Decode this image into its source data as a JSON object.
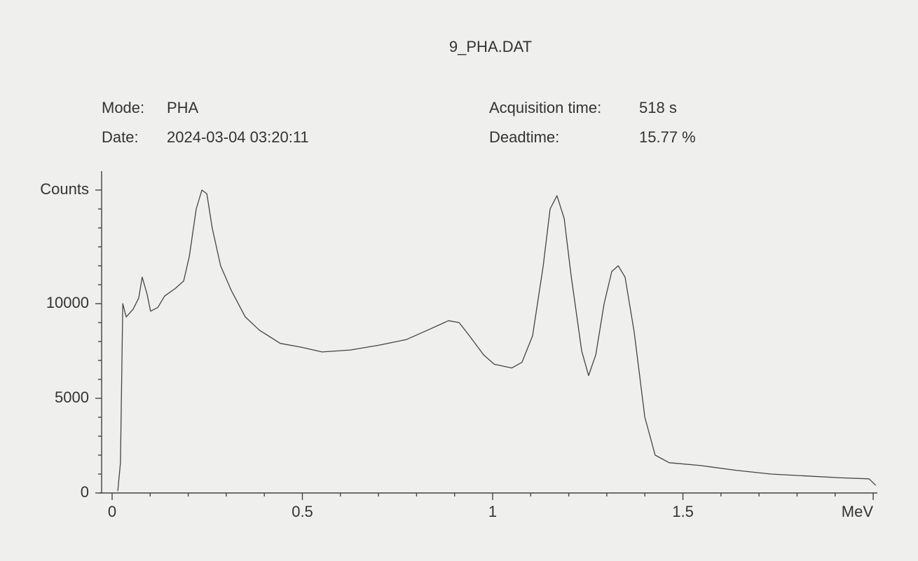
{
  "chart_data": {
    "type": "line",
    "title": "9_PHA.DAT",
    "info": [
      {
        "label": "Mode:",
        "value": "PHA"
      },
      {
        "label": "Date:",
        "value": "2024-03-04 03:20:11"
      },
      {
        "label": "Acquisition time:",
        "value": "518 s"
      },
      {
        "label": "Deadtime:",
        "value": "15.77 %"
      }
    ],
    "color": "#444444",
    "x": [
      0.015,
      0.022,
      0.028,
      0.037,
      0.055,
      0.07,
      0.079,
      0.092,
      0.101,
      0.12,
      0.138,
      0.166,
      0.188,
      0.203,
      0.221,
      0.236,
      0.249,
      0.263,
      0.285,
      0.313,
      0.35,
      0.387,
      0.442,
      0.497,
      0.552,
      0.626,
      0.7,
      0.773,
      0.829,
      0.884,
      0.912,
      0.939,
      0.976,
      1.004,
      1.05,
      1.077,
      1.105,
      1.133,
      1.151,
      1.169,
      1.188,
      1.206,
      1.234,
      1.252,
      1.271,
      1.293,
      1.313,
      1.33,
      1.348,
      1.372,
      1.4,
      1.427,
      1.464,
      1.547,
      1.639,
      1.731,
      1.823,
      1.915,
      1.989,
      2.007
    ],
    "values": [
      100,
      1600,
      10000,
      9300,
      9700,
      10300,
      11400,
      10500,
      9600,
      9800,
      10400,
      10800,
      11200,
      12500,
      15000,
      16000,
      15800,
      14000,
      12000,
      10700,
      9300,
      8600,
      7900,
      7700,
      7450,
      7550,
      7800,
      8100,
      8600,
      9100,
      9000,
      8300,
      7300,
      6800,
      6600,
      6900,
      8300,
      12000,
      15000,
      15700,
      14500,
      11500,
      7500,
      6200,
      7300,
      10000,
      11700,
      12000,
      11400,
      8500,
      4000,
      2000,
      1600,
      1450,
      1200,
      1000,
      900,
      800,
      750,
      400
    ],
    "xlim": [
      -0.03,
      2.02
    ],
    "ylim": [
      0,
      17000
    ],
    "xticks": [
      0,
      0.5,
      1,
      1.5,
      {
        "value": 2,
        "label": "MeV"
      }
    ],
    "yticks": [
      0,
      5000,
      10000,
      {
        "value": 16000,
        "label": "Counts"
      }
    ],
    "xticks_minor": [
      0.1,
      0.2,
      0.3,
      0.4,
      0.6,
      0.7,
      0.8,
      0.9,
      1.1,
      1.2,
      1.3,
      1.4,
      1.6,
      1.7,
      1.8,
      1.9
    ],
    "yticks_minor": [
      1000,
      2000,
      3000,
      4000,
      6000,
      7000,
      8000,
      9000,
      11000,
      12000,
      13000,
      14000,
      15000
    ]
  }
}
